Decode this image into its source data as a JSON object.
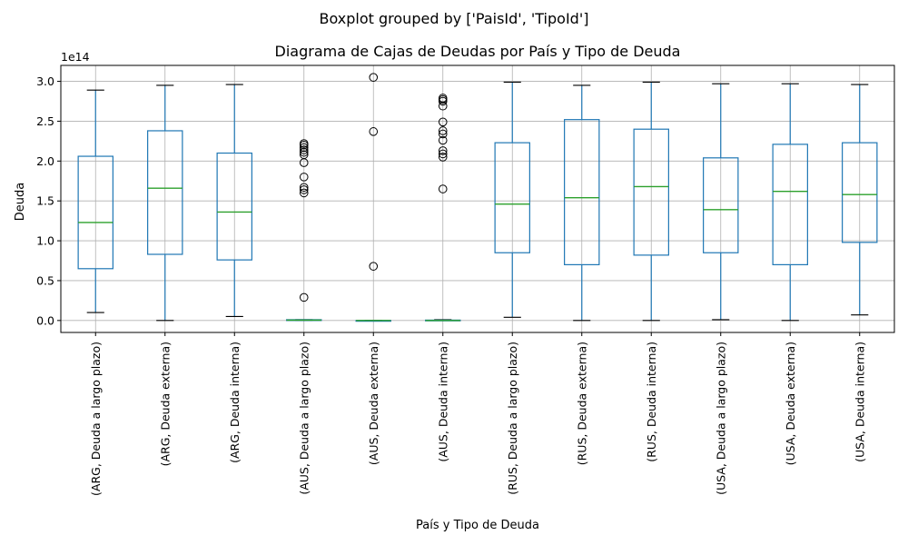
{
  "chart_data": {
    "type": "boxplot",
    "suptitle": "Boxplot grouped by ['PaisId', 'TipoId']",
    "title": "Diagrama de Cajas de Deudas por País y Tipo de Deuda",
    "xlabel": "País y Tipo de Deuda",
    "ylabel": "Deuda",
    "y_offset_label": "1e14",
    "y_scale": 100000000000000.0,
    "ylim": [
      -0.15,
      3.2
    ],
    "yticks": [
      0.0,
      0.5,
      1.0,
      1.5,
      2.0,
      2.5,
      3.0
    ],
    "ytick_labels": [
      "0.0",
      "0.5",
      "1.0",
      "1.5",
      "2.0",
      "2.5",
      "3.0"
    ],
    "grid": true,
    "colors": {
      "box": "#1f77b4",
      "median": "#2ca02c",
      "cap": "#000000",
      "grid": "#b0b0b0"
    },
    "categories": [
      "(ARG, Deuda a largo plazo)",
      "(ARG, Deuda externa)",
      "(ARG, Deuda interna)",
      "(AUS, Deuda a largo plazo)",
      "(AUS, Deuda externa)",
      "(AUS, Deuda interna)",
      "(RUS, Deuda a largo plazo)",
      "(RUS, Deuda externa)",
      "(RUS, Deuda interna)",
      "(USA, Deuda a largo plazo)",
      "(USA, Deuda externa)",
      "(USA, Deuda interna)"
    ],
    "boxes": [
      {
        "whislo": 0.1,
        "q1": 0.65,
        "med": 1.23,
        "q3": 2.06,
        "whishi": 2.89,
        "fliers": []
      },
      {
        "whislo": 0.0,
        "q1": 0.83,
        "med": 1.66,
        "q3": 2.38,
        "whishi": 2.95,
        "fliers": []
      },
      {
        "whislo": 0.05,
        "q1": 0.76,
        "med": 1.36,
        "q3": 2.1,
        "whishi": 2.96,
        "fliers": []
      },
      {
        "whislo": 0.0,
        "q1": 0.0,
        "med": 0.005,
        "q3": 0.01,
        "whishi": 0.01,
        "fliers": [
          0.29,
          1.6,
          1.64,
          1.67,
          1.8,
          1.98,
          2.08,
          2.11,
          2.14,
          2.17,
          2.2,
          2.22
        ]
      },
      {
        "whislo": 0.0,
        "q1": 0.0,
        "med": 0.0,
        "q3": 0.0,
        "whishi": 0.0,
        "fliers": [
          0.68,
          2.37,
          3.05
        ]
      },
      {
        "whislo": 0.0,
        "q1": 0.0,
        "med": 0.0,
        "q3": 0.005,
        "whishi": 0.01,
        "fliers": [
          1.65,
          2.05,
          2.09,
          2.13,
          2.26,
          2.34,
          2.38,
          2.49,
          2.69,
          2.75,
          2.77,
          2.79
        ]
      },
      {
        "whislo": 0.04,
        "q1": 0.85,
        "med": 1.46,
        "q3": 2.23,
        "whishi": 2.99,
        "fliers": []
      },
      {
        "whislo": 0.0,
        "q1": 0.7,
        "med": 1.54,
        "q3": 2.52,
        "whishi": 2.95,
        "fliers": []
      },
      {
        "whislo": 0.0,
        "q1": 0.82,
        "med": 1.68,
        "q3": 2.4,
        "whishi": 2.99,
        "fliers": []
      },
      {
        "whislo": 0.01,
        "q1": 0.85,
        "med": 1.39,
        "q3": 2.04,
        "whishi": 2.97,
        "fliers": []
      },
      {
        "whislo": 0.0,
        "q1": 0.7,
        "med": 1.62,
        "q3": 2.21,
        "whishi": 2.97,
        "fliers": []
      },
      {
        "whislo": 0.07,
        "q1": 0.98,
        "med": 1.58,
        "q3": 2.23,
        "whishi": 2.96,
        "fliers": []
      }
    ]
  }
}
